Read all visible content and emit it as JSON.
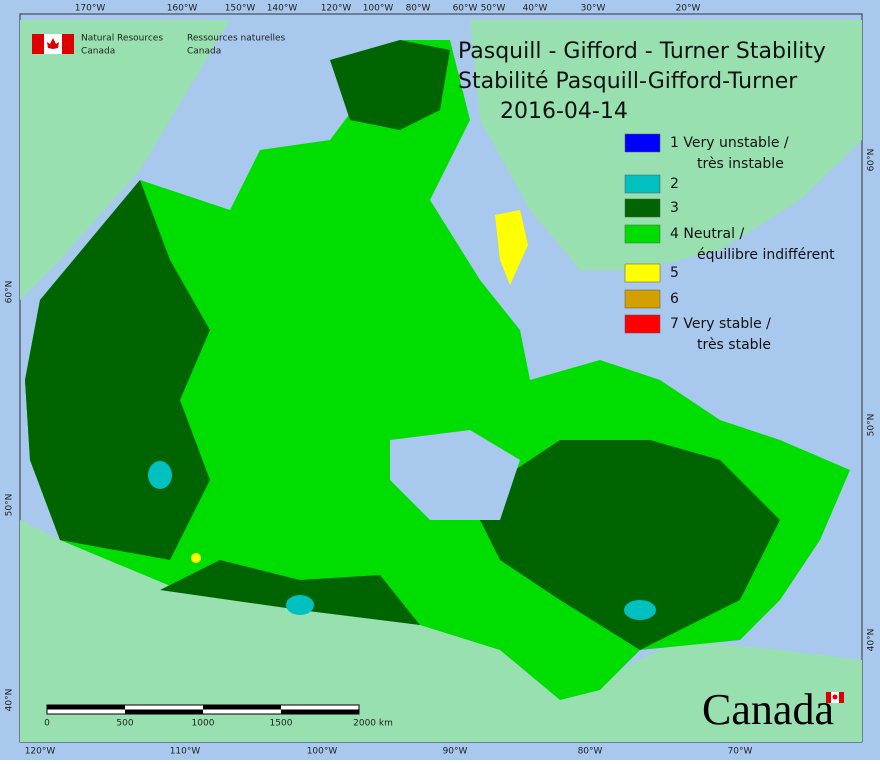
{
  "header": {
    "agency_en": [
      "Natural Resources",
      "Canada"
    ],
    "agency_fr": [
      "Ressources naturelles",
      "Canada"
    ]
  },
  "title": {
    "lines": [
      "Pasquill - Gifford - Turner Stability",
      "Stabilité Pasquill-Gifford-Turner",
      "2016-04-14"
    ]
  },
  "legend": {
    "items": [
      {
        "lines": [
          "1 Very unstable /",
          "très instable"
        ],
        "color": "#0000ff"
      },
      {
        "lines": [
          "2"
        ],
        "color": "#00c0c0"
      },
      {
        "lines": [
          "3"
        ],
        "color": "#006400"
      },
      {
        "lines": [
          "4 Neutral /",
          "équilibre indifférent"
        ],
        "color": "#00dd00"
      },
      {
        "lines": [
          "5"
        ],
        "color": "#ffff00"
      },
      {
        "lines": [
          "6"
        ],
        "color": "#d4a000"
      },
      {
        "lines": [
          "7 Very stable /",
          "très stable"
        ],
        "color": "#ff0000"
      }
    ]
  },
  "graticule": {
    "top": [
      "170°W",
      "160°W",
      "150°W",
      "140°W",
      "120°W",
      "100°W",
      "80°W",
      "60°W",
      "50°W",
      "40°W",
      "30°W",
      "20°W"
    ],
    "bottom": [
      "120°W",
      "110°W",
      "100°W",
      "90°W",
      "80°W",
      "70°W"
    ],
    "left": [
      "60°N",
      "50°N",
      "40°N"
    ],
    "right": [
      "60°N",
      "50°N",
      "40°N"
    ]
  },
  "scale_bar": {
    "labels": [
      "0",
      "500",
      "1000",
      "1500",
      "2000 km"
    ]
  },
  "wordmark": "Canada"
}
